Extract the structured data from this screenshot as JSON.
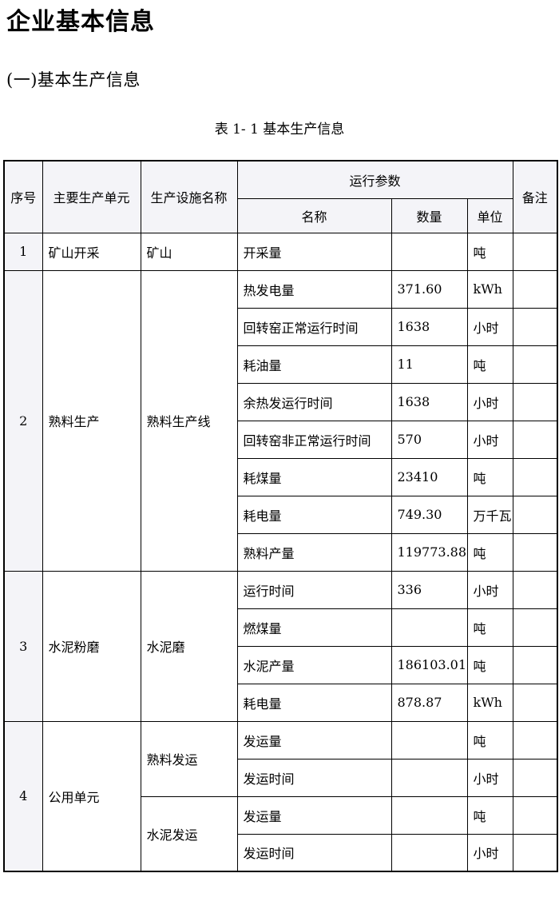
{
  "page": {
    "title": "企业基本信息",
    "section_heading": "(一)基本生产信息",
    "table_caption": "表 1- 1 基本生产信息"
  },
  "colors": {
    "header_background": "#f4f4f8",
    "table_border": "#000000",
    "text": "#000000"
  },
  "table": {
    "headers": {
      "seq": "序号",
      "main_unit": "主要生产单元",
      "facility": "生产设施名称",
      "params_group": "运行参数",
      "param_name": "名称",
      "quantity": "数量",
      "uom": "单位",
      "remarks": "备注"
    },
    "sections": [
      {
        "seq": "1",
        "main_unit": "矿山开采",
        "facilities": [
          {
            "name": "矿山",
            "rows": [
              {
                "param": "开采量",
                "qty": "",
                "uom": "吨",
                "remark": ""
              }
            ]
          }
        ]
      },
      {
        "seq": "2",
        "main_unit": "熟料生产",
        "facilities": [
          {
            "name": "熟料生产线",
            "rows": [
              {
                "param": "热发电量",
                "qty": "371.60",
                "uom": "kWh",
                "remark": ""
              },
              {
                "param": "回转窑正常运行时间",
                "qty": "1638",
                "uom": "小时",
                "remark": ""
              },
              {
                "param": "耗油量",
                "qty": "11",
                "uom": "吨",
                "remark": ""
              },
              {
                "param": "余热发运行时间",
                "qty": "1638",
                "uom": "小时",
                "remark": ""
              },
              {
                "param": "回转窑非正常运行时间",
                "qty": "570",
                "uom": "小时",
                "remark": ""
              },
              {
                "param": "耗煤量",
                "qty": "23410",
                "uom": "吨",
                "remark": ""
              },
              {
                "param": "耗电量",
                "qty": "749.30",
                "uom": "万千瓦",
                "remark": ""
              },
              {
                "param": "熟料产量",
                "qty": "119773.88",
                "uom": "吨",
                "remark": ""
              }
            ]
          }
        ]
      },
      {
        "seq": "3",
        "main_unit": "水泥粉磨",
        "facilities": [
          {
            "name": "水泥磨",
            "rows": [
              {
                "param": "运行时间",
                "qty": "336",
                "uom": "小时",
                "remark": ""
              },
              {
                "param": "燃煤量",
                "qty": "",
                "uom": "吨",
                "remark": ""
              },
              {
                "param": "水泥产量",
                "qty": "186103.01",
                "uom": "吨",
                "remark": ""
              },
              {
                "param": "耗电量",
                "qty": "878.87",
                "uom": "kWh",
                "remark": ""
              }
            ]
          }
        ]
      },
      {
        "seq": "4",
        "main_unit": "公用单元",
        "facilities": [
          {
            "name": "熟料发运",
            "rows": [
              {
                "param": "发运量",
                "qty": "",
                "uom": "吨",
                "remark": ""
              },
              {
                "param": "发运时间",
                "qty": "",
                "uom": "小时",
                "remark": ""
              }
            ]
          },
          {
            "name": "水泥发运",
            "rows": [
              {
                "param": "发运量",
                "qty": "",
                "uom": "吨",
                "remark": ""
              },
              {
                "param": "发运时间",
                "qty": "",
                "uom": "小时",
                "remark": ""
              }
            ]
          }
        ]
      }
    ]
  }
}
